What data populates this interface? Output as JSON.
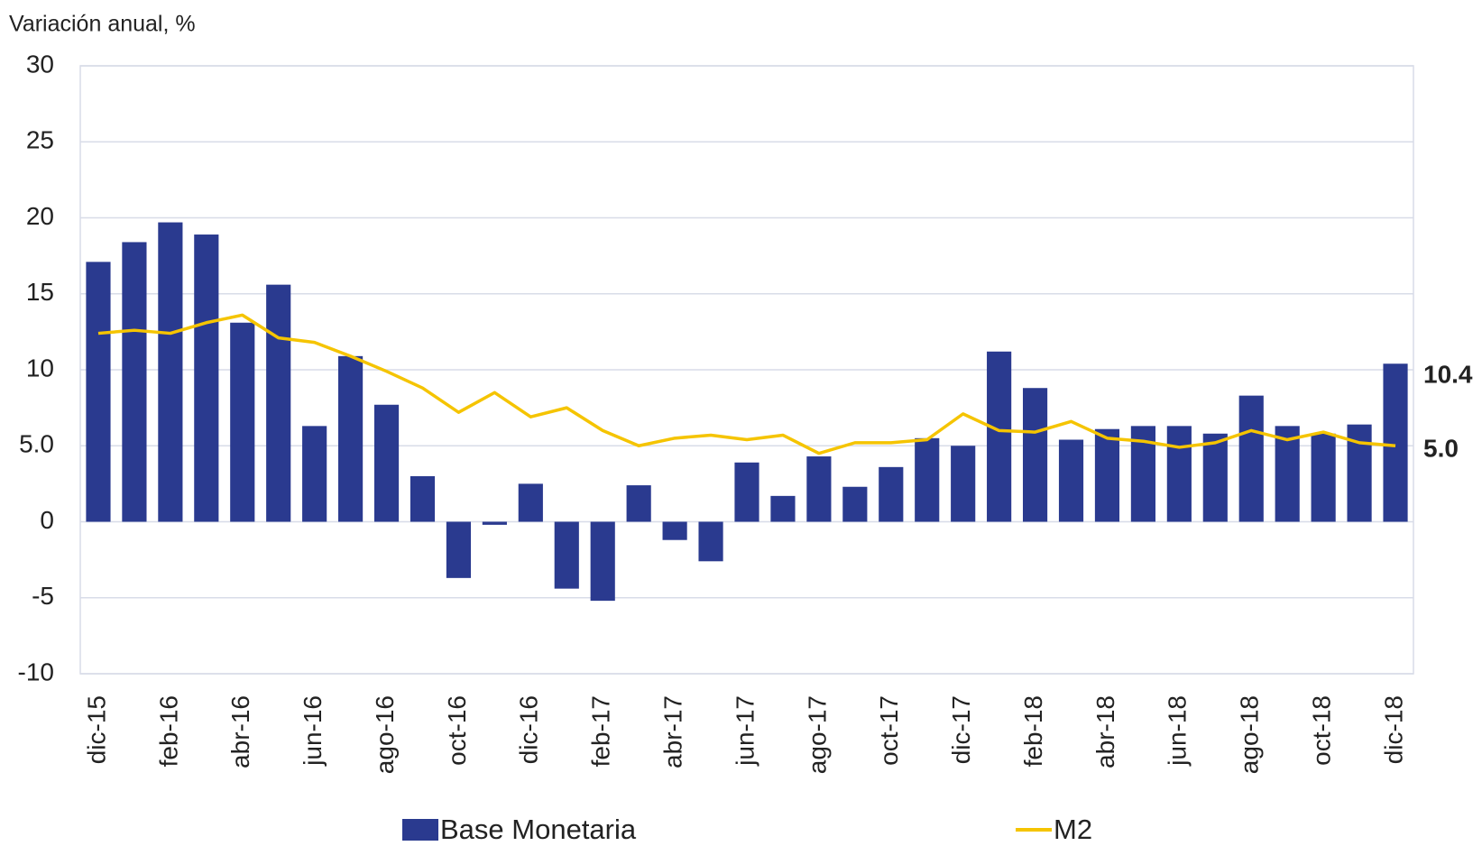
{
  "chart_data": {
    "type": "bar_line",
    "ylabel": "Variación anual, %",
    "categories": [
      "dic-15",
      null,
      "feb-16",
      null,
      "abr-16",
      null,
      "jun-16",
      null,
      "ago-16",
      null,
      "oct-16",
      null,
      "dic-16",
      null,
      "feb-17",
      null,
      "abr-17",
      null,
      "jun-17",
      null,
      "ago-17",
      null,
      "oct-17",
      null,
      "dic-17",
      null,
      "feb-18",
      null,
      "abr-18",
      null,
      "jun-18",
      null,
      "ago-18",
      null,
      "oct-18",
      null,
      "dic-18"
    ],
    "series": [
      {
        "name": "Base Monetaria",
        "type": "bar",
        "color": "#2a3a8f",
        "values": [
          17.1,
          18.4,
          19.7,
          18.9,
          13.1,
          15.6,
          6.3,
          10.9,
          7.7,
          3.0,
          -3.7,
          -0.2,
          2.5,
          -4.4,
          -5.2,
          2.4,
          -1.2,
          -2.6,
          3.9,
          1.7,
          4.3,
          2.3,
          3.6,
          5.5,
          5.0,
          11.2,
          8.8,
          5.4,
          6.1,
          6.3,
          6.3,
          5.8,
          8.3,
          6.3,
          5.8,
          6.4,
          10.4
        ],
        "value_labels": [
          null,
          null,
          null,
          null,
          null,
          null,
          null,
          null,
          null,
          null,
          null,
          null,
          null,
          null,
          null,
          null,
          null,
          null,
          null,
          null,
          null,
          null,
          null,
          null,
          null,
          null,
          null,
          null,
          null,
          null,
          null,
          null,
          null,
          null,
          null,
          null,
          "10.4"
        ]
      },
      {
        "name": "M2",
        "type": "line",
        "color": "#f5c400",
        "values": [
          12.4,
          12.6,
          12.4,
          13.1,
          13.6,
          12.1,
          11.8,
          10.9,
          9.9,
          8.8,
          7.2,
          8.5,
          6.9,
          7.5,
          6.0,
          5.0,
          5.5,
          5.7,
          5.4,
          5.7,
          4.5,
          5.2,
          5.2,
          5.4,
          7.1,
          6.0,
          5.9,
          6.6,
          5.5,
          5.3,
          4.9,
          5.2,
          6.0,
          5.4,
          5.9,
          5.2,
          5.0
        ],
        "value_labels": [
          null,
          null,
          null,
          null,
          null,
          null,
          null,
          null,
          null,
          null,
          null,
          null,
          null,
          null,
          null,
          null,
          null,
          null,
          null,
          null,
          null,
          null,
          null,
          null,
          null,
          null,
          null,
          null,
          null,
          null,
          null,
          null,
          null,
          null,
          null,
          null,
          "5.0"
        ]
      }
    ],
    "ylim": [
      -10,
      30
    ],
    "yticks": [
      -10,
      -5,
      0,
      {
        "value": 5,
        "label": "5.0"
      },
      10,
      15,
      20,
      25,
      30
    ],
    "grid": true,
    "legend": "bottom"
  }
}
